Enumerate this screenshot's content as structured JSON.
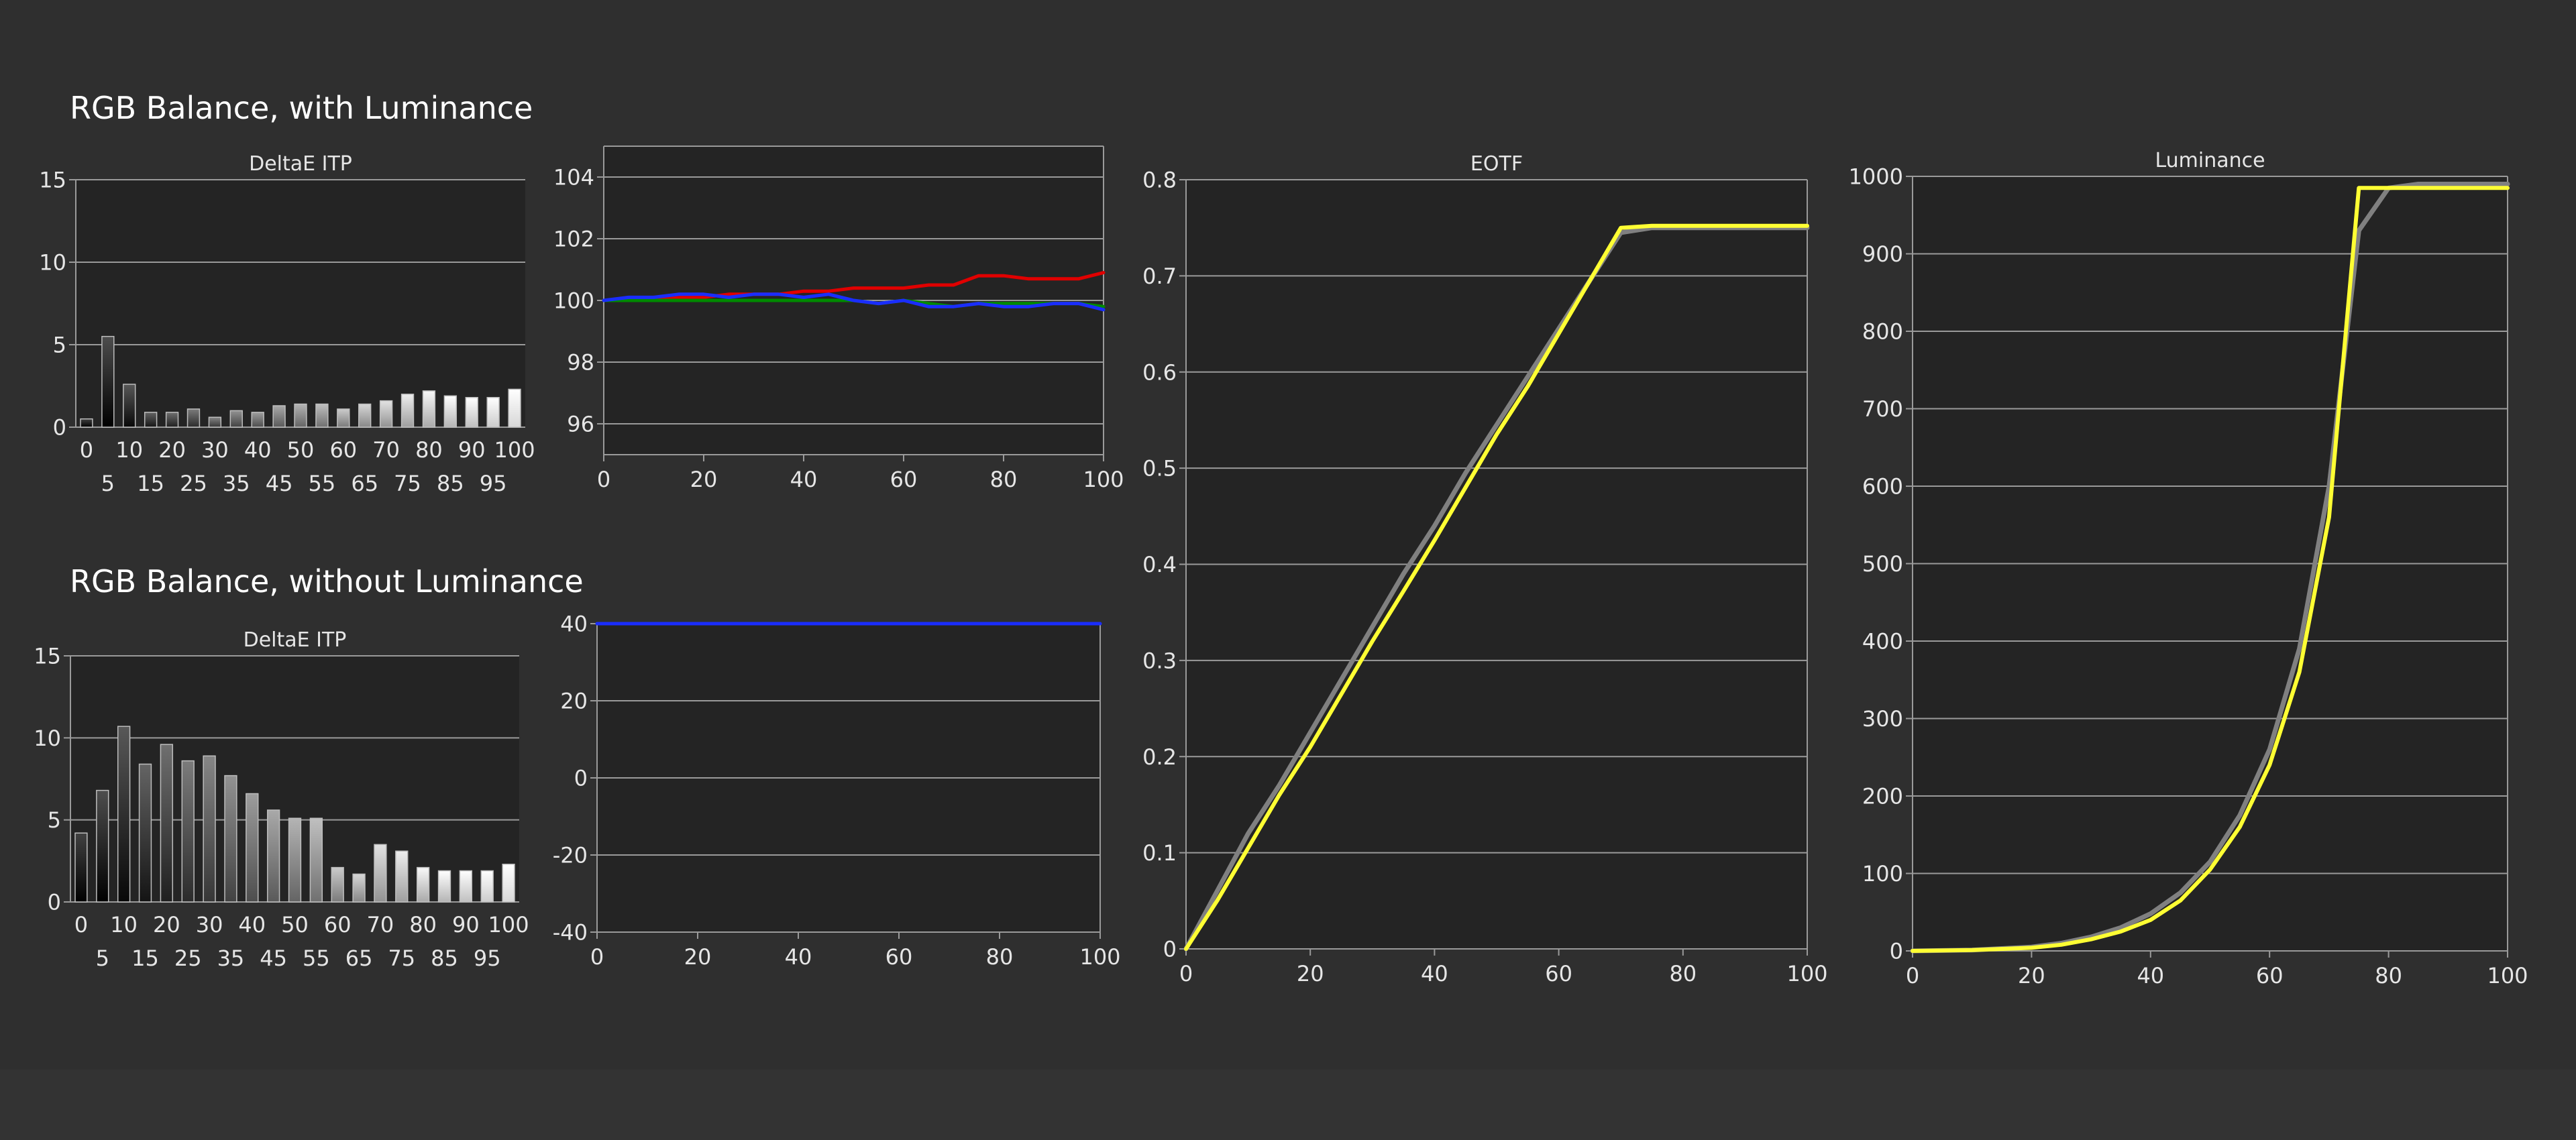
{
  "sections": {
    "with_luminance": "RGB Balance, with Luminance",
    "without_luminance": "RGB Balance, without Luminance"
  },
  "colors": {
    "background": "#2f2f2f",
    "plot_background": "#242424",
    "grid": "#9a9a9a",
    "text": "#e6e6e6",
    "red": "#e00000",
    "green": "#008a00",
    "blue": "#1a2dff",
    "measured": "#ffff33",
    "target": "#808080"
  },
  "chart_data": [
    {
      "id": "deltae_with",
      "type": "bar",
      "title": "DeltaE ITP",
      "categories": [
        "0",
        "5",
        "10",
        "15",
        "20",
        "25",
        "30",
        "35",
        "40",
        "45",
        "50",
        "55",
        "60",
        "65",
        "70",
        "75",
        "80",
        "85",
        "90",
        "95",
        "100"
      ],
      "values": [
        0.5,
        5.5,
        2.6,
        0.9,
        0.9,
        1.1,
        0.6,
        1.0,
        0.9,
        1.3,
        1.4,
        1.4,
        1.1,
        1.4,
        1.6,
        2.0,
        2.2,
        1.9,
        1.8,
        1.8,
        2.3
      ],
      "ylim": [
        0,
        15
      ],
      "yticks": [
        0,
        5,
        10,
        15
      ],
      "xticks_top": [
        "0",
        "10",
        "20",
        "30",
        "40",
        "50",
        "60",
        "70",
        "80",
        "90",
        "100"
      ],
      "xticks_bottom": [
        "5",
        "15",
        "25",
        "35",
        "45",
        "55",
        "65",
        "75",
        "85",
        "95"
      ]
    },
    {
      "id": "rgb_with",
      "type": "line",
      "title": "",
      "xlim": [
        0,
        100
      ],
      "ylim": [
        95,
        105
      ],
      "yticks": [
        96,
        98,
        100,
        102,
        104
      ],
      "xticks": [
        0,
        20,
        40,
        60,
        80,
        100
      ],
      "series": [
        {
          "color": "red",
          "x": [
            0,
            5,
            10,
            15,
            20,
            25,
            30,
            35,
            40,
            45,
            50,
            55,
            60,
            65,
            70,
            75,
            80,
            85,
            90,
            95,
            100
          ],
          "y": [
            100.0,
            100.0,
            100.1,
            100.1,
            100.1,
            100.2,
            100.2,
            100.2,
            100.3,
            100.3,
            100.4,
            100.4,
            100.4,
            100.5,
            100.5,
            100.8,
            100.8,
            100.7,
            100.7,
            100.7,
            100.9
          ]
        },
        {
          "color": "green",
          "x": [
            0,
            5,
            10,
            15,
            20,
            25,
            30,
            35,
            40,
            45,
            50,
            55,
            60,
            65,
            70,
            75,
            80,
            85,
            90,
            95,
            100
          ],
          "y": [
            100.0,
            100.0,
            100.0,
            100.0,
            100.0,
            100.0,
            100.0,
            100.0,
            100.0,
            100.0,
            100.0,
            99.9,
            100.0,
            99.9,
            99.8,
            99.9,
            99.9,
            99.9,
            99.9,
            99.9,
            99.8
          ]
        },
        {
          "color": "blue",
          "x": [
            0,
            5,
            10,
            15,
            20,
            25,
            30,
            35,
            40,
            45,
            50,
            55,
            60,
            65,
            70,
            75,
            80,
            85,
            90,
            95,
            100
          ],
          "y": [
            100.0,
            100.1,
            100.1,
            100.2,
            100.2,
            100.1,
            100.2,
            100.2,
            100.1,
            100.2,
            100.0,
            99.9,
            100.0,
            99.8,
            99.8,
            99.9,
            99.8,
            99.8,
            99.9,
            99.9,
            99.7
          ]
        }
      ]
    },
    {
      "id": "eotf",
      "type": "line",
      "title": "EOTF",
      "xlim": [
        0,
        100
      ],
      "ylim": [
        0,
        0.8
      ],
      "yticks": [
        0,
        0.1,
        0.2,
        0.3,
        0.4,
        0.5,
        0.6,
        0.7,
        0.8
      ],
      "xticks": [
        0,
        20,
        40,
        60,
        80,
        100
      ],
      "series": [
        {
          "color": "target",
          "x": [
            0,
            5,
            10,
            15,
            20,
            25,
            30,
            35,
            40,
            45,
            50,
            55,
            60,
            65,
            70,
            75,
            100
          ],
          "y": [
            0,
            0.06,
            0.12,
            0.17,
            0.225,
            0.28,
            0.335,
            0.39,
            0.44,
            0.495,
            0.545,
            0.595,
            0.645,
            0.695,
            0.745,
            0.75,
            0.75
          ]
        },
        {
          "color": "measured",
          "x": [
            0,
            5,
            10,
            15,
            20,
            25,
            30,
            35,
            40,
            45,
            50,
            55,
            60,
            65,
            70,
            75,
            80,
            85,
            90,
            95,
            100
          ],
          "y": [
            0,
            0.05,
            0.105,
            0.16,
            0.21,
            0.265,
            0.32,
            0.372,
            0.425,
            0.48,
            0.535,
            0.585,
            0.64,
            0.695,
            0.75,
            0.752,
            0.752,
            0.752,
            0.752,
            0.752,
            0.752
          ]
        }
      ]
    },
    {
      "id": "luminance",
      "type": "line",
      "title": "Luminance",
      "xlim": [
        0,
        100
      ],
      "ylim": [
        0,
        1000
      ],
      "yticks": [
        0,
        100,
        200,
        300,
        400,
        500,
        600,
        700,
        800,
        900,
        1000
      ],
      "xticks": [
        0,
        20,
        40,
        60,
        80,
        100
      ],
      "series": [
        {
          "color": "target",
          "x": [
            0,
            10,
            20,
            25,
            30,
            35,
            40,
            45,
            50,
            55,
            60,
            65,
            70,
            75,
            80,
            85,
            90,
            95,
            100
          ],
          "y": [
            0,
            1,
            5,
            10,
            18,
            30,
            48,
            75,
            115,
            175,
            260,
            390,
            600,
            930,
            985,
            990,
            990,
            990,
            990
          ]
        },
        {
          "color": "measured",
          "x": [
            0,
            10,
            20,
            25,
            30,
            35,
            40,
            45,
            50,
            55,
            60,
            65,
            70,
            75,
            80,
            85,
            90,
            95,
            100
          ],
          "y": [
            0,
            1,
            4,
            8,
            15,
            25,
            40,
            65,
            105,
            160,
            240,
            360,
            560,
            985,
            985,
            985,
            985,
            985,
            985
          ]
        }
      ]
    },
    {
      "id": "deltae_without",
      "type": "bar",
      "title": "DeltaE ITP",
      "categories": [
        "0",
        "5",
        "10",
        "15",
        "20",
        "25",
        "30",
        "35",
        "40",
        "45",
        "50",
        "55",
        "60",
        "65",
        "70",
        "75",
        "80",
        "85",
        "90",
        "95",
        "100"
      ],
      "values": [
        4.2,
        6.8,
        10.7,
        8.4,
        9.6,
        8.6,
        8.9,
        7.7,
        6.6,
        5.6,
        5.1,
        5.1,
        2.1,
        1.7,
        3.5,
        3.1,
        2.1,
        1.9,
        1.9,
        1.9,
        2.3
      ],
      "ylim": [
        0,
        15
      ],
      "yticks": [
        0,
        5,
        10,
        15
      ],
      "xticks_top": [
        "0",
        "10",
        "20",
        "30",
        "40",
        "50",
        "60",
        "70",
        "80",
        "90",
        "100"
      ],
      "xticks_bottom": [
        "5",
        "15",
        "25",
        "35",
        "45",
        "55",
        "65",
        "75",
        "85",
        "95"
      ]
    },
    {
      "id": "rgb_without",
      "type": "line",
      "title": "",
      "xlim": [
        0,
        100
      ],
      "ylim": [
        -40,
        40
      ],
      "yticks": [
        -40,
        -20,
        0,
        20,
        40
      ],
      "xticks": [
        0,
        20,
        40,
        60,
        80,
        100
      ],
      "series": [
        {
          "color": "blue",
          "x": [
            0,
            100
          ],
          "y": [
            40,
            40
          ]
        }
      ]
    }
  ]
}
